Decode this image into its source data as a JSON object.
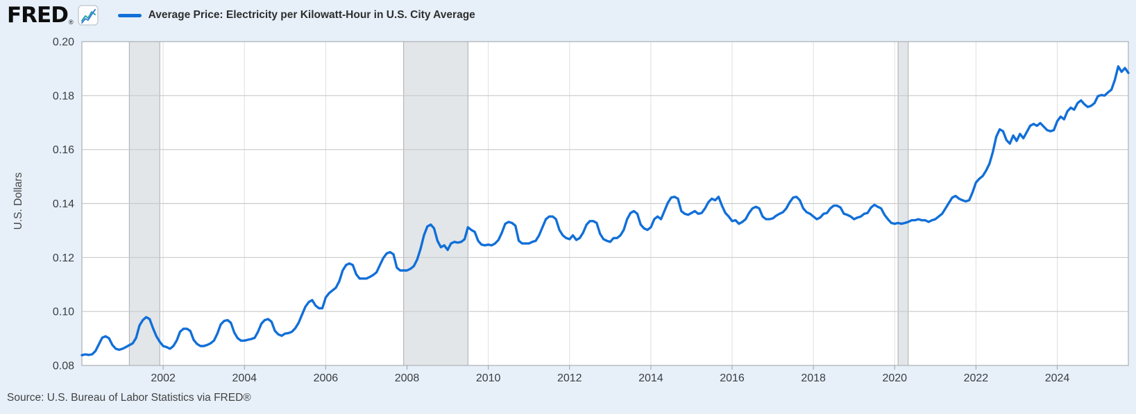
{
  "header": {
    "logo_text": "FRED",
    "registered_mark": "®",
    "legend_label": "Average Price: Electricity per Kilowatt-Hour in U.S. City Average"
  },
  "y_axis_title": "U.S. Dollars",
  "footer": {
    "source_text": "Source: U.S. Bureau of Labor Statistics via FRED®"
  },
  "colors": {
    "page_background": "#e7f0f9",
    "plot_background": "#ffffff",
    "line": "#116fd8",
    "grid": "#c9c9c9",
    "vgrid": "#dddfe2",
    "border": "#b4b8bc",
    "recession": "#e2e6e9",
    "recession_edge": "#a8acb0",
    "tick": "#9aa0a5",
    "tick_text": "#3a3d40",
    "icon_teal": "#2aa5ad",
    "icon_blue": "#3f7ed6"
  },
  "chart_data": {
    "type": "line",
    "title": "Average Price: Electricity per Kilowatt-Hour in U.S. City Average",
    "ylabel": "U.S. Dollars",
    "legend_position": "top-left",
    "grid": true,
    "frequency": "monthly",
    "start_year": 2000,
    "start_month": 1,
    "x_domain": [
      2000.0,
      2025.75
    ],
    "ylim": [
      0.08,
      0.2
    ],
    "y_ticks": [
      0.08,
      0.1,
      0.12,
      0.14,
      0.16,
      0.18,
      0.2
    ],
    "x_ticks": [
      2002,
      2004,
      2006,
      2008,
      2010,
      2012,
      2014,
      2016,
      2018,
      2020,
      2022,
      2024
    ],
    "recession_bands": [
      [
        2001.167,
        2001.917
      ],
      [
        2007.917,
        2009.5
      ],
      [
        2020.083,
        2020.333
      ]
    ],
    "series": [
      {
        "name": "Average Price: Electricity per Kilowatt-Hour in U.S. City Average",
        "unit": "U.S. Dollars",
        "values": [
          0.0838,
          0.0841,
          0.0839,
          0.0841,
          0.0853,
          0.0878,
          0.0903,
          0.0908,
          0.0901,
          0.0876,
          0.0862,
          0.0858,
          0.0862,
          0.0868,
          0.0875,
          0.0882,
          0.0902,
          0.0948,
          0.0968,
          0.0979,
          0.0972,
          0.0938,
          0.0908,
          0.0888,
          0.0872,
          0.0868,
          0.0862,
          0.0872,
          0.0892,
          0.0925,
          0.0936,
          0.0936,
          0.0928,
          0.0895,
          0.088,
          0.0872,
          0.0872,
          0.0876,
          0.0882,
          0.0892,
          0.0918,
          0.0952,
          0.0965,
          0.0968,
          0.0958,
          0.0922,
          0.0901,
          0.0892,
          0.0892,
          0.0895,
          0.0898,
          0.0902,
          0.0925,
          0.0955,
          0.0968,
          0.0972,
          0.0962,
          0.0928,
          0.0915,
          0.091,
          0.0918,
          0.092,
          0.0925,
          0.0938,
          0.0958,
          0.0988,
          0.1018,
          0.1035,
          0.1042,
          0.1022,
          0.1012,
          0.1012,
          0.1052,
          0.1068,
          0.1078,
          0.1088,
          0.1112,
          0.1152,
          0.1172,
          0.1178,
          0.1172,
          0.1138,
          0.1122,
          0.1122,
          0.1122,
          0.1128,
          0.1135,
          0.1145,
          0.1172,
          0.1198,
          0.1215,
          0.122,
          0.1212,
          0.1162,
          0.1152,
          0.1152,
          0.1152,
          0.1158,
          0.1168,
          0.1192,
          0.1232,
          0.1282,
          0.1315,
          0.1322,
          0.1308,
          0.1262,
          0.1238,
          0.1245,
          0.1228,
          0.1252,
          0.1258,
          0.1255,
          0.1258,
          0.1268,
          0.1312,
          0.1302,
          0.1295,
          0.1262,
          0.1248,
          0.1245,
          0.1248,
          0.1245,
          0.1252,
          0.1265,
          0.1292,
          0.1325,
          0.1332,
          0.1328,
          0.1318,
          0.1262,
          0.1252,
          0.1252,
          0.1252,
          0.1258,
          0.1262,
          0.1282,
          0.1312,
          0.1342,
          0.1352,
          0.1352,
          0.1342,
          0.1302,
          0.1282,
          0.1272,
          0.1268,
          0.1282,
          0.1265,
          0.1272,
          0.1292,
          0.1322,
          0.1335,
          0.1335,
          0.1328,
          0.1288,
          0.1268,
          0.1262,
          0.1258,
          0.1272,
          0.1272,
          0.1282,
          0.1302,
          0.1342,
          0.1365,
          0.1372,
          0.1362,
          0.1322,
          0.1308,
          0.1302,
          0.1312,
          0.1342,
          0.1352,
          0.1342,
          0.1372,
          0.1402,
          0.1422,
          0.1425,
          0.1418,
          0.1372,
          0.1362,
          0.1358,
          0.1365,
          0.1372,
          0.1362,
          0.1365,
          0.1382,
          0.1405,
          0.1418,
          0.1412,
          0.1425,
          0.1392,
          0.1365,
          0.1352,
          0.1335,
          0.1338,
          0.1325,
          0.1332,
          0.1342,
          0.1365,
          0.1382,
          0.1388,
          0.1382,
          0.1352,
          0.1342,
          0.1342,
          0.1345,
          0.1355,
          0.1362,
          0.1368,
          0.1382,
          0.1405,
          0.1422,
          0.1425,
          0.1412,
          0.1382,
          0.1368,
          0.1362,
          0.1352,
          0.1342,
          0.1348,
          0.1362,
          0.1365,
          0.1382,
          0.1392,
          0.1392,
          0.1385,
          0.1362,
          0.1358,
          0.1352,
          0.1342,
          0.1348,
          0.1352,
          0.1362,
          0.1365,
          0.1385,
          0.1395,
          0.1388,
          0.1382,
          0.1358,
          0.1342,
          0.1328,
          0.1325,
          0.1328,
          0.1325,
          0.1328,
          0.1332,
          0.1338,
          0.1338,
          0.1342,
          0.1338,
          0.1338,
          0.1332,
          0.1338,
          0.1342,
          0.1352,
          0.1362,
          0.1382,
          0.1402,
          0.1422,
          0.1428,
          0.1418,
          0.1412,
          0.1408,
          0.1412,
          0.1442,
          0.1478,
          0.1492,
          0.1502,
          0.1522,
          0.1548,
          0.1592,
          0.1648,
          0.1675,
          0.1668,
          0.1635,
          0.1622,
          0.1652,
          0.1632,
          0.1658,
          0.1642,
          0.1665,
          0.1688,
          0.1695,
          0.1688,
          0.1698,
          0.1685,
          0.1672,
          0.1668,
          0.1672,
          0.1705,
          0.1722,
          0.1712,
          0.1742,
          0.1755,
          0.1748,
          0.1772,
          0.1782,
          0.1768,
          0.1758,
          0.1762,
          0.1772,
          0.1798,
          0.1802,
          0.18,
          0.1812,
          0.1822,
          0.1858,
          0.1908,
          0.1888,
          0.1902,
          0.1884
        ]
      }
    ]
  }
}
